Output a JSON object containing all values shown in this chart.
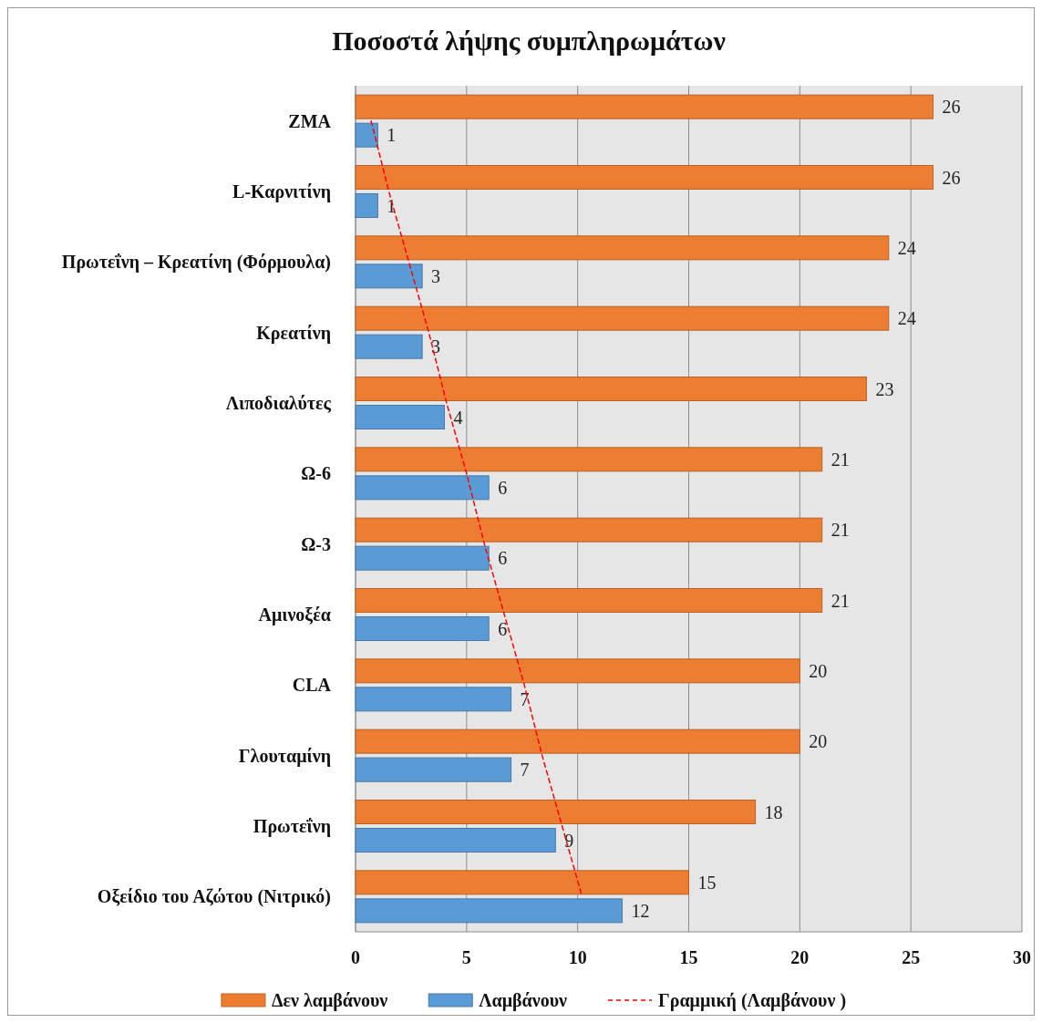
{
  "chart_data": {
    "type": "bar",
    "orientation": "horizontal",
    "title": "Ποσοστά λήψης συμπληρωμάτων",
    "categories": [
      "ZMA",
      "L-Καρνιτίνη",
      "Πρωτεΐνη – Κρεατίνη (Φόρμουλα)",
      "Κρεατίνη",
      "Λιποδιαλύτες",
      "Ω-6",
      "Ω-3",
      "Αμινοξέα",
      "CLA",
      "Γλουταμίνη",
      "Πρωτεΐνη",
      "Οξείδιο του Αζώτου (Νιτρικό)"
    ],
    "series": [
      {
        "name": "Δεν λαμβάνουν",
        "color": "#ed7d31",
        "values": [
          26,
          26,
          24,
          24,
          23,
          21,
          21,
          21,
          20,
          20,
          18,
          15
        ],
        "value_labels": [
          "26",
          "26",
          "24",
          "24",
          "23",
          "21",
          "21",
          "21",
          "20",
          "20",
          "18",
          "15"
        ]
      },
      {
        "name": "Λαμβάνουν",
        "color": "#5b9bd5",
        "values": [
          1,
          1,
          3,
          3,
          4,
          6,
          6,
          6,
          7,
          7,
          9,
          12
        ],
        "value_labels": [
          "1",
          "1",
          "3",
          "3",
          "4",
          "6",
          "6",
          "6",
          "7",
          "7",
          "9",
          "12"
        ]
      },
      {
        "name": "Γραμμική (Λαμβάνουν )",
        "type": "line",
        "color": "#ff0000",
        "line_style": "dashed",
        "values": [
          0.7,
          1.5,
          2.4,
          3.3,
          4.1,
          5.0,
          5.8,
          6.7,
          7.6,
          8.4,
          9.3,
          10.2
        ]
      }
    ],
    "xlim": [
      0,
      30
    ],
    "xticks": [
      0,
      5,
      10,
      15,
      20,
      25,
      30
    ],
    "grid": "x",
    "legend": "bottom"
  }
}
